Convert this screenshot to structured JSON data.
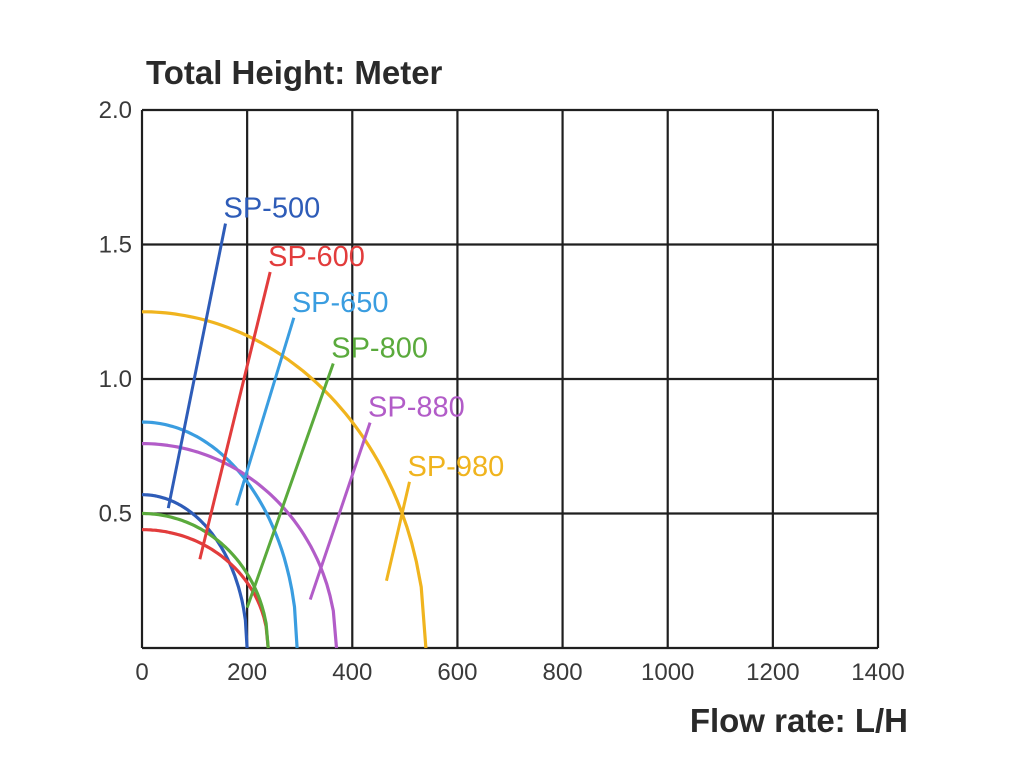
{
  "chart_data": {
    "type": "line",
    "title": "Total Height:  Meter",
    "xlabel": "Flow rate:  L/H",
    "ylabel": "Total Height:  Meter",
    "xlim": [
      0,
      1400
    ],
    "ylim": [
      0,
      2.0
    ],
    "x_ticks": [
      0,
      200,
      400,
      600,
      800,
      1000,
      1200,
      1400
    ],
    "x_tick_labels": [
      "0",
      "200",
      "400",
      "600",
      "800",
      "1000",
      "1200",
      "1400"
    ],
    "y_ticks": [
      0.5,
      1.0,
      1.5,
      2.0
    ],
    "y_tick_labels": [
      "0.5",
      "1.0",
      "1.5",
      "2.0"
    ],
    "grid": true,
    "legend": "inline labels with leader lines",
    "series": [
      {
        "name": "SP-500",
        "color": "#2e5cb8",
        "max_head": 0.57,
        "max_flow": 200,
        "label_anchor": [
          155,
          1.6
        ],
        "leader_to": [
          50,
          0.52
        ]
      },
      {
        "name": "SP-600",
        "color": "#e23c3c",
        "max_head": 0.44,
        "max_flow": 240,
        "label_anchor": [
          240,
          1.42
        ],
        "leader_to": [
          110,
          0.33
        ]
      },
      {
        "name": "SP-650",
        "color": "#3a9de0",
        "max_head": 0.84,
        "max_flow": 295,
        "label_anchor": [
          285,
          1.25
        ],
        "leader_to": [
          180,
          0.53
        ]
      },
      {
        "name": "SP-800",
        "color": "#5aaa3c",
        "max_head": 0.5,
        "max_flow": 240,
        "label_anchor": [
          360,
          1.08
        ],
        "leader_to": [
          200,
          0.15
        ]
      },
      {
        "name": "SP-880",
        "color": "#b25cc8",
        "max_head": 0.76,
        "max_flow": 370,
        "label_anchor": [
          430,
          0.86
        ],
        "leader_to": [
          320,
          0.18
        ]
      },
      {
        "name": "SP-980",
        "color": "#f0b41e",
        "max_head": 1.25,
        "max_flow": 540,
        "label_anchor": [
          505,
          0.64
        ],
        "leader_to": [
          465,
          0.25
        ]
      }
    ]
  }
}
